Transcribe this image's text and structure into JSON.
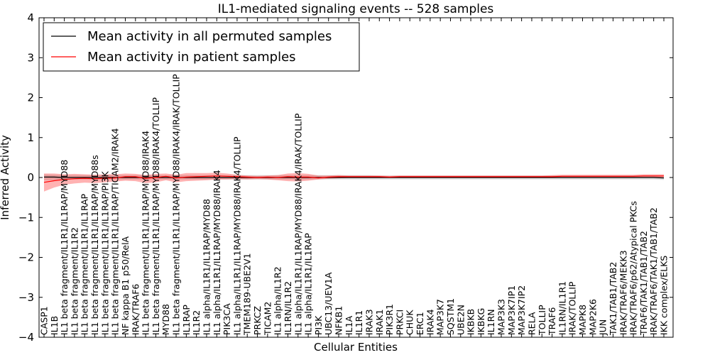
{
  "chart_data": {
    "type": "line",
    "title": "IL1-mediated signaling events -- 528 samples",
    "xlabel": "Cellular Entities",
    "ylabel": "Inferred Activity",
    "ylim": [
      -4,
      4
    ],
    "yticks": [
      "−4",
      "−3",
      "−2",
      "−1",
      "0",
      "1",
      "2",
      "3",
      "4"
    ],
    "yticks_values": [
      -4,
      -3,
      -2,
      -1,
      0,
      1,
      2,
      3,
      4
    ],
    "legend_position": "top-left",
    "categories": [
      "CASP1",
      "IL1B",
      "IL1 beta fragment/IL1R1/IL1RAP/MYD88",
      "IL1 beta fragment/IL1R2",
      "IL1 beta fragment/IL1R1/IL1RAP",
      "IL1 beta fragment/IL1R1/IL1RAP/MYD88s",
      "IL1 beta fragment/IL1R1/IL1RAP/PI3K",
      "IL1 beta fragment/IL1R1/IL1RAP/TICAM2/IRAK4",
      "NF kappa B1 p50/RelA",
      "IRAK/TRAF6",
      "IL1 beta fragment/IL1R1/IL1RAP/MYD88/IRAK4",
      "IL1 beta fragment/IL1R1/IL1RAP/MYD88/IRAK4/TOLLIP",
      "MYD88",
      "IL1 beta fragment/IL1R1/IL1RAP/MYD88/IRAK4/IRAK/TOLLIP",
      "IL1RAP",
      "IL1R2",
      "IL1 alpha/IL1R1/IL1RAP/MYD88",
      "IL1 alpha/IL1R1/IL1RAP/MYD88/IRAK4",
      "PIK3CA",
      "IL1 alpha/IL1R1/IL1RAP/MYD88/IRAK4/TOLLIP",
      "TMEM189-UBE2V1",
      "PRKCZ",
      "TICAM2",
      "IL1 alpha/IL1R2",
      "IL1RN/IL1R2",
      "IL1 alpha/IL1R1/IL1RAP/MYD88/IRAK4/IRAK/TOLLIP",
      "IL1 alpha/IL1R1/IL1RAP",
      "PI3K",
      "UBC13/UEV1A",
      "NFKB1",
      "IL1A",
      "IL1R1",
      "IRAK3",
      "IRAK1",
      "PIK3R1",
      "PRKCI",
      "CHUK",
      "ERC1",
      "IRAK4",
      "MAP3K7",
      "SQSTM1",
      "UBE2N",
      "IKBKB",
      "IKBKG",
      "IL1RN",
      "MAP3K3",
      "MAP3K7IP1",
      "MAP3K7IP2",
      "RELA",
      "TOLLIP",
      "TRAF6",
      "IL1RN/IL1R1",
      "IRAK/TOLLIP",
      "MAPK8",
      "MAP2K6",
      "JUN",
      "TAK1/TAB1/TAB2",
      "IRAK/TRAF6/MEKK3",
      "IRAK/TRAF6/p62/Atypical PKCs",
      "TRAF6/TAK1/TAB1/TAB2",
      "IRAK/TRAF6/TAK1/TAB1/TAB2",
      "IKK complex/ELKS"
    ],
    "series": [
      {
        "name": "Mean activity in all permuted samples",
        "color": "#000000",
        "values": [
          0.01,
          0.01,
          0.0,
          0.0,
          0.0,
          0.0,
          0.0,
          0.0,
          0.0,
          0.0,
          0.0,
          0.0,
          0.0,
          0.0,
          0.0,
          0.0,
          0.0,
          0.0,
          0.0,
          0.0,
          0.0,
          0.0,
          0.0,
          0.0,
          0.0,
          0.0,
          0.0,
          0.0,
          0.0,
          0.0,
          0.0,
          0.0,
          0.0,
          0.0,
          0.0,
          0.0,
          0.0,
          0.0,
          0.0,
          0.0,
          0.0,
          0.0,
          0.0,
          0.0,
          0.0,
          0.0,
          0.0,
          0.0,
          0.0,
          0.0,
          0.0,
          0.0,
          0.0,
          0.0,
          0.0,
          0.0,
          0.0,
          0.0,
          0.0,
          0.0,
          0.0,
          -0.01
        ],
        "band_low": [
          -0.07,
          -0.06,
          -0.05,
          -0.05,
          -0.05,
          -0.05,
          -0.05,
          -0.05,
          -0.05,
          -0.05,
          -0.05,
          -0.05,
          -0.05,
          -0.05,
          -0.05,
          -0.05,
          -0.05,
          -0.05,
          -0.05,
          -0.05,
          -0.05,
          -0.05,
          -0.05,
          -0.05,
          -0.05,
          -0.05,
          -0.05,
          -0.05,
          -0.05,
          -0.05,
          -0.05,
          -0.05,
          -0.05,
          -0.05,
          -0.05,
          -0.05,
          -0.05,
          -0.05,
          -0.05,
          -0.05,
          -0.05,
          -0.05,
          -0.05,
          -0.05,
          -0.05,
          -0.05,
          -0.05,
          -0.05,
          -0.05,
          -0.05,
          -0.05,
          -0.05,
          -0.05,
          -0.05,
          -0.05,
          -0.05,
          -0.05,
          -0.05,
          -0.05,
          -0.05,
          -0.05,
          -0.06
        ],
        "band_high": [
          0.08,
          0.07,
          0.06,
          0.06,
          0.06,
          0.06,
          0.06,
          0.06,
          0.06,
          0.06,
          0.06,
          0.06,
          0.06,
          0.06,
          0.06,
          0.06,
          0.06,
          0.06,
          0.06,
          0.06,
          0.06,
          0.06,
          0.06,
          0.06,
          0.06,
          0.06,
          0.06,
          0.06,
          0.06,
          0.06,
          0.06,
          0.06,
          0.06,
          0.05,
          0.05,
          0.05,
          0.05,
          0.05,
          0.05,
          0.05,
          0.05,
          0.05,
          0.05,
          0.05,
          0.05,
          0.05,
          0.05,
          0.05,
          0.05,
          0.05,
          0.05,
          0.05,
          0.05,
          0.05,
          0.05,
          0.05,
          0.05,
          0.05,
          0.05,
          0.05,
          0.05,
          0.05
        ]
      },
      {
        "name": "Mean activity in patient samples",
        "color": "#ff0000",
        "values": [
          -0.12,
          -0.08,
          -0.05,
          -0.03,
          -0.02,
          -0.03,
          -0.02,
          -0.01,
          0.02,
          0.02,
          -0.02,
          0.0,
          0.03,
          -0.01,
          0.01,
          0.02,
          0.03,
          0.04,
          0.03,
          0.02,
          0.01,
          0.0,
          0.01,
          0.0,
          0.02,
          0.01,
          0.01,
          -0.01,
          0.01,
          0.02,
          0.02,
          0.02,
          0.02,
          0.02,
          0.01,
          0.02,
          0.02,
          0.02,
          0.02,
          0.02,
          0.02,
          0.02,
          0.02,
          0.02,
          0.02,
          0.02,
          0.02,
          0.02,
          0.02,
          0.02,
          0.02,
          0.03,
          0.03,
          0.03,
          0.03,
          0.03,
          0.03,
          0.03,
          0.03,
          0.04,
          0.04,
          0.04
        ],
        "band_low": [
          -0.35,
          -0.25,
          -0.18,
          -0.15,
          -0.13,
          -0.14,
          -0.12,
          -0.1,
          -0.08,
          -0.09,
          -0.14,
          -0.12,
          -0.07,
          -0.12,
          -0.09,
          -0.08,
          -0.07,
          -0.05,
          -0.05,
          -0.04,
          -0.05,
          -0.04,
          -0.05,
          -0.07,
          -0.09,
          -0.1,
          -0.08,
          -0.05,
          -0.03,
          -0.02,
          -0.01,
          -0.01,
          -0.01,
          -0.01,
          -0.01,
          -0.01,
          -0.01,
          -0.01,
          -0.01,
          -0.01,
          -0.01,
          -0.01,
          -0.01,
          -0.01,
          -0.01,
          -0.01,
          -0.01,
          -0.01,
          -0.01,
          -0.01,
          -0.01,
          -0.01,
          -0.01,
          -0.01,
          -0.01,
          -0.01,
          -0.01,
          -0.01,
          -0.01,
          0.0,
          0.0,
          0.0
        ],
        "band_high": [
          0.1,
          0.1,
          0.08,
          0.09,
          0.08,
          0.07,
          0.08,
          0.08,
          0.1,
          0.09,
          0.06,
          0.09,
          0.1,
          0.07,
          0.11,
          0.11,
          0.11,
          0.12,
          0.1,
          0.07,
          0.05,
          0.04,
          0.05,
          0.06,
          0.1,
          0.11,
          0.09,
          0.05,
          0.05,
          0.06,
          0.05,
          0.05,
          0.05,
          0.05,
          0.04,
          0.05,
          0.05,
          0.05,
          0.05,
          0.05,
          0.05,
          0.05,
          0.05,
          0.05,
          0.05,
          0.05,
          0.05,
          0.05,
          0.05,
          0.05,
          0.06,
          0.07,
          0.07,
          0.07,
          0.07,
          0.07,
          0.07,
          0.07,
          0.07,
          0.08,
          0.08,
          0.08
        ]
      }
    ]
  }
}
